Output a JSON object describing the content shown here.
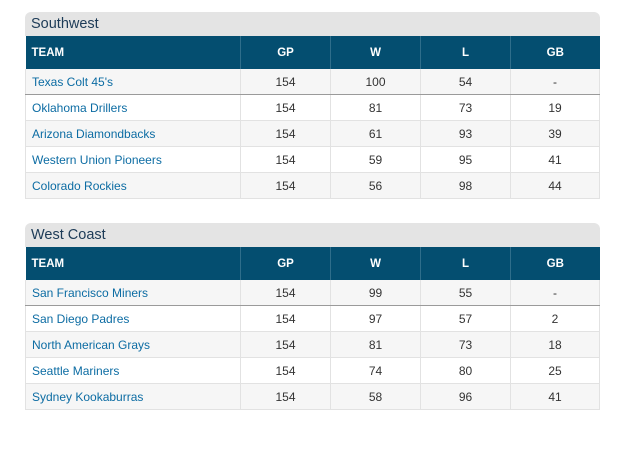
{
  "sections": [
    {
      "title": "Southwest",
      "columns": [
        "TEAM",
        "GP",
        "W",
        "L",
        "GB"
      ],
      "rows": [
        [
          "Texas Colt 45's",
          154,
          100,
          54,
          "-"
        ],
        [
          "Oklahoma Drillers",
          154,
          81,
          73,
          19
        ],
        [
          "Arizona Diamondbacks",
          154,
          61,
          93,
          39
        ],
        [
          "Western Union Pioneers",
          154,
          59,
          95,
          41
        ],
        [
          "Colorado Rockies",
          154,
          56,
          98,
          44
        ]
      ]
    },
    {
      "title": "West Coast",
      "columns": [
        "TEAM",
        "GP",
        "W",
        "L",
        "GB"
      ],
      "rows": [
        [
          "San Francisco Miners",
          154,
          99,
          55,
          "-"
        ],
        [
          "San Diego Padres",
          154,
          97,
          57,
          2
        ],
        [
          "North American Grays",
          154,
          81,
          73,
          18
        ],
        [
          "Seattle Mariners",
          154,
          74,
          80,
          25
        ],
        [
          "Sydney Kookaburras",
          154,
          58,
          96,
          41
        ]
      ]
    }
  ]
}
